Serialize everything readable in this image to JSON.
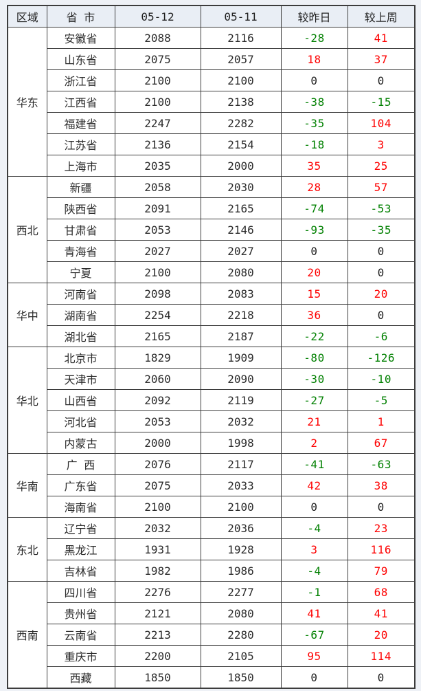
{
  "page": {
    "background": "#eef1f6"
  },
  "table": {
    "header_bg": "#e9eef5",
    "colors": {
      "up": "#fe0000",
      "down": "#008000",
      "zero": "#1f1f1f"
    },
    "header": {
      "region": "区域",
      "province": "省 市",
      "date1": "05-12",
      "date2": "05-11",
      "vs_yesterday": "较昨日",
      "vs_lastweek": "较上周"
    },
    "regions": [
      {
        "name": "华东",
        "rows": [
          {
            "province": "安徽省",
            "d1": "2088",
            "d2": "2116",
            "vy": -28,
            "vw": 41
          },
          {
            "province": "山东省",
            "d1": "2075",
            "d2": "2057",
            "vy": 18,
            "vw": 37
          },
          {
            "province": "浙江省",
            "d1": "2100",
            "d2": "2100",
            "vy": 0,
            "vw": 0
          },
          {
            "province": "江西省",
            "d1": "2100",
            "d2": "2138",
            "vy": -38,
            "vw": -15
          },
          {
            "province": "福建省",
            "d1": "2247",
            "d2": "2282",
            "vy": -35,
            "vw": 104
          },
          {
            "province": "江苏省",
            "d1": "2136",
            "d2": "2154",
            "vy": -18,
            "vw": 3
          },
          {
            "province": "上海市",
            "d1": "2035",
            "d2": "2000",
            "vy": 35,
            "vw": 25
          }
        ]
      },
      {
        "name": "西北",
        "rows": [
          {
            "province": "新疆",
            "d1": "2058",
            "d2": "2030",
            "vy": 28,
            "vw": 57
          },
          {
            "province": "陕西省",
            "d1": "2091",
            "d2": "2165",
            "vy": -74,
            "vw": -53
          },
          {
            "province": "甘肃省",
            "d1": "2053",
            "d2": "2146",
            "vy": -93,
            "vw": -35
          },
          {
            "province": "青海省",
            "d1": "2027",
            "d2": "2027",
            "vy": 0,
            "vw": 0
          },
          {
            "province": "宁夏",
            "d1": "2100",
            "d2": "2080",
            "vy": 20,
            "vw": 0
          }
        ]
      },
      {
        "name": "华中",
        "rows": [
          {
            "province": "河南省",
            "d1": "2098",
            "d2": "2083",
            "vy": 15,
            "vw": 20
          },
          {
            "province": "湖南省",
            "d1": "2254",
            "d2": "2218",
            "vy": 36,
            "vw": 0
          },
          {
            "province": "湖北省",
            "d1": "2165",
            "d2": "2187",
            "vy": -22,
            "vw": -6
          }
        ]
      },
      {
        "name": "华北",
        "rows": [
          {
            "province": "北京市",
            "d1": "1829",
            "d2": "1909",
            "vy": -80,
            "vw": -126
          },
          {
            "province": "天津市",
            "d1": "2060",
            "d2": "2090",
            "vy": -30,
            "vw": -10
          },
          {
            "province": "山西省",
            "d1": "2092",
            "d2": "2119",
            "vy": -27,
            "vw": -5
          },
          {
            "province": "河北省",
            "d1": "2053",
            "d2": "2032",
            "vy": 21,
            "vw": 1
          },
          {
            "province": "内蒙古",
            "d1": "2000",
            "d2": "1998",
            "vy": 2,
            "vw": 67
          }
        ]
      },
      {
        "name": "华南",
        "rows": [
          {
            "province": "广 西",
            "d1": "2076",
            "d2": "2117",
            "vy": -41,
            "vw": -63
          },
          {
            "province": "广东省",
            "d1": "2075",
            "d2": "2033",
            "vy": 42,
            "vw": 38
          },
          {
            "province": "海南省",
            "d1": "2100",
            "d2": "2100",
            "vy": 0,
            "vw": 0
          }
        ]
      },
      {
        "name": "东北",
        "rows": [
          {
            "province": "辽宁省",
            "d1": "2032",
            "d2": "2036",
            "vy": -4,
            "vw": 23
          },
          {
            "province": "黑龙江",
            "d1": "1931",
            "d2": "1928",
            "vy": 3,
            "vw": 116
          },
          {
            "province": "吉林省",
            "d1": "1982",
            "d2": "1986",
            "vy": -4,
            "vw": 79
          }
        ]
      },
      {
        "name": "西南",
        "rows": [
          {
            "province": "四川省",
            "d1": "2276",
            "d2": "2277",
            "vy": -1,
            "vw": 68
          },
          {
            "province": "贵州省",
            "d1": "2121",
            "d2": "2080",
            "vy": 41,
            "vw": 41
          },
          {
            "province": "云南省",
            "d1": "2213",
            "d2": "2280",
            "vy": -67,
            "vw": 20
          },
          {
            "province": "重庆市",
            "d1": "2200",
            "d2": "2105",
            "vy": 95,
            "vw": 114
          },
          {
            "province": "西藏",
            "d1": "1850",
            "d2": "1850",
            "vy": 0,
            "vw": 0
          }
        ]
      }
    ]
  }
}
